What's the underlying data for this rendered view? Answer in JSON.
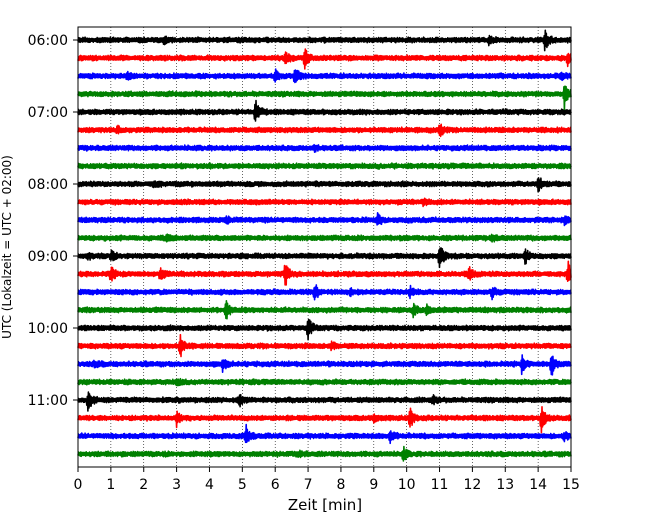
{
  "chart_data": {
    "type": "line",
    "title": "",
    "xlabel": "Zeit  [min]",
    "ylabel": "UTC (Lokalzeit = UTC + 02:00)",
    "xlim": [
      0,
      15
    ],
    "x_ticks": [
      0,
      1,
      2,
      3,
      4,
      5,
      6,
      7,
      8,
      9,
      10,
      11,
      12,
      13,
      14,
      15
    ],
    "y_ticks": [
      {
        "label": "06:00",
        "trace_index": 0
      },
      {
        "label": "07:00",
        "trace_index": 4
      },
      {
        "label": "08:00",
        "trace_index": 8
      },
      {
        "label": "09:00",
        "trace_index": 12
      },
      {
        "label": "10:00",
        "trace_index": 16
      },
      {
        "label": "11:00",
        "trace_index": 20
      }
    ],
    "grid": {
      "x": true,
      "style": "dotted"
    },
    "trace_start": "06:00",
    "trace_length_min": 15,
    "color_cycle": [
      "#000000",
      "#ff0000",
      "#0000ff",
      "#008000"
    ],
    "traces": [
      {
        "start": "06:00",
        "color": "#000000",
        "events": [
          {
            "t": 14.2,
            "amp": 1.6
          },
          {
            "t": 2.6,
            "amp": 0.5
          },
          {
            "t": 12.5,
            "amp": 0.6
          }
        ]
      },
      {
        "start": "06:15",
        "color": "#ff0000",
        "events": [
          {
            "t": 6.3,
            "amp": 0.8
          },
          {
            "t": 6.9,
            "amp": 1.5
          },
          {
            "t": 14.9,
            "amp": 1.0
          }
        ]
      },
      {
        "start": "06:30",
        "color": "#0000ff",
        "events": [
          {
            "t": 6.0,
            "amp": 0.8
          },
          {
            "t": 6.6,
            "amp": 1.3
          },
          {
            "t": 1.5,
            "amp": 0.5
          },
          {
            "t": 14.7,
            "amp": 0.6
          }
        ]
      },
      {
        "start": "06:45",
        "color": "#008000",
        "events": [
          {
            "t": 14.8,
            "amp": 2.0
          }
        ]
      },
      {
        "start": "07:00",
        "color": "#000000",
        "events": [
          {
            "t": 5.4,
            "amp": 1.8
          }
        ]
      },
      {
        "start": "07:15",
        "color": "#ff0000",
        "events": [
          {
            "t": 11.0,
            "amp": 0.9
          },
          {
            "t": 1.2,
            "amp": 0.4
          }
        ]
      },
      {
        "start": "07:30",
        "color": "#0000ff",
        "events": [
          {
            "t": 7.2,
            "amp": 0.4
          }
        ]
      },
      {
        "start": "07:45",
        "color": "#008000",
        "events": []
      },
      {
        "start": "08:00",
        "color": "#000000",
        "events": [
          {
            "t": 14.0,
            "amp": 1.2
          },
          {
            "t": 2.3,
            "amp": 0.5
          }
        ]
      },
      {
        "start": "08:15",
        "color": "#ff0000",
        "events": [
          {
            "t": 10.5,
            "amp": 0.4
          }
        ]
      },
      {
        "start": "08:30",
        "color": "#0000ff",
        "events": [
          {
            "t": 9.1,
            "amp": 0.9
          },
          {
            "t": 4.5,
            "amp": 0.5
          },
          {
            "t": 14.8,
            "amp": 0.5
          }
        ]
      },
      {
        "start": "08:45",
        "color": "#008000",
        "events": [
          {
            "t": 12.6,
            "amp": 0.5
          },
          {
            "t": 2.7,
            "amp": 0.4
          }
        ]
      },
      {
        "start": "09:00",
        "color": "#000000",
        "events": [
          {
            "t": 11.0,
            "amp": 1.9
          },
          {
            "t": 13.6,
            "amp": 1.1
          },
          {
            "t": 1.0,
            "amp": 0.8
          },
          {
            "t": 0.3,
            "amp": 0.4
          }
        ]
      },
      {
        "start": "09:15",
        "color": "#ff0000",
        "events": [
          {
            "t": 1.0,
            "amp": 1.1
          },
          {
            "t": 2.5,
            "amp": 0.9
          },
          {
            "t": 6.3,
            "amp": 2.0
          },
          {
            "t": 11.9,
            "amp": 1.0
          },
          {
            "t": 14.9,
            "amp": 1.8
          }
        ]
      },
      {
        "start": "09:30",
        "color": "#0000ff",
        "events": [
          {
            "t": 7.2,
            "amp": 1.2
          },
          {
            "t": 10.1,
            "amp": 0.8
          },
          {
            "t": 12.6,
            "amp": 0.8
          },
          {
            "t": 8.3,
            "amp": 0.5
          }
        ]
      },
      {
        "start": "09:45",
        "color": "#008000",
        "events": [
          {
            "t": 4.5,
            "amp": 1.5
          },
          {
            "t": 10.2,
            "amp": 0.9
          },
          {
            "t": 10.6,
            "amp": 0.6
          }
        ]
      },
      {
        "start": "10:00",
        "color": "#000000",
        "events": [
          {
            "t": 7.0,
            "amp": 1.6
          }
        ]
      },
      {
        "start": "10:15",
        "color": "#ff0000",
        "events": [
          {
            "t": 3.1,
            "amp": 1.8
          },
          {
            "t": 7.7,
            "amp": 0.6
          }
        ]
      },
      {
        "start": "10:30",
        "color": "#0000ff",
        "events": [
          {
            "t": 4.4,
            "amp": 0.9
          },
          {
            "t": 13.5,
            "amp": 1.2
          },
          {
            "t": 14.4,
            "amp": 2.0
          },
          {
            "t": 0.5,
            "amp": 0.5
          }
        ]
      },
      {
        "start": "10:45",
        "color": "#008000",
        "events": [
          {
            "t": 3.0,
            "amp": 0.5
          }
        ]
      },
      {
        "start": "11:00",
        "color": "#000000",
        "events": [
          {
            "t": 0.3,
            "amp": 1.5
          },
          {
            "t": 4.9,
            "amp": 0.9
          },
          {
            "t": 10.8,
            "amp": 0.5
          }
        ]
      },
      {
        "start": "11:15",
        "color": "#ff0000",
        "events": [
          {
            "t": 3.0,
            "amp": 1.0
          },
          {
            "t": 10.1,
            "amp": 1.4
          },
          {
            "t": 14.1,
            "amp": 1.9
          },
          {
            "t": 9.0,
            "amp": 0.5
          }
        ]
      },
      {
        "start": "11:30",
        "color": "#0000ff",
        "events": [
          {
            "t": 5.1,
            "amp": 1.6
          },
          {
            "t": 9.5,
            "amp": 0.8
          },
          {
            "t": 14.8,
            "amp": 0.6
          }
        ]
      },
      {
        "start": "11:45",
        "color": "#008000",
        "events": [
          {
            "t": 9.9,
            "amp": 0.9
          },
          {
            "t": 6.7,
            "amp": 0.4
          }
        ]
      }
    ]
  }
}
